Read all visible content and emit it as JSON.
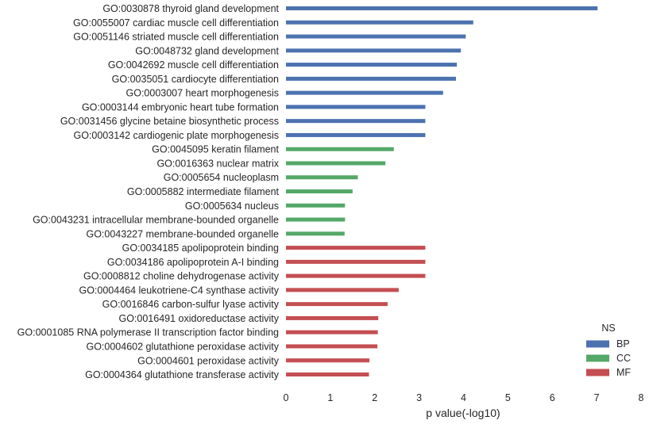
{
  "chart_data": {
    "type": "bar",
    "orientation": "horizontal",
    "xlabel": "p value(-log10)",
    "xlim": [
      0,
      8
    ],
    "xticks": [
      0,
      1,
      2,
      3,
      4,
      5,
      6,
      7,
      8
    ],
    "grid": false,
    "legend": {
      "title": "NS",
      "placement": "bottom-right",
      "entries": [
        {
          "key": "BP",
          "label": "BP",
          "color": "#4c72b0"
        },
        {
          "key": "CC",
          "label": "CC",
          "color": "#55a868"
        },
        {
          "key": "MF",
          "label": "MF",
          "color": "#c44e52"
        }
      ]
    },
    "bars": [
      {
        "label": "GO:0030878 thyroid gland development",
        "value": 7.02,
        "ns": "BP"
      },
      {
        "label": "GO:0055007 cardiac muscle cell differentiation",
        "value": 4.22,
        "ns": "BP"
      },
      {
        "label": "GO:0051146 striated muscle cell differentiation",
        "value": 4.05,
        "ns": "BP"
      },
      {
        "label": "GO:0048732 gland development",
        "value": 3.94,
        "ns": "BP"
      },
      {
        "label": "GO:0042692 muscle cell differentiation",
        "value": 3.85,
        "ns": "BP"
      },
      {
        "label": "GO:0035051 cardiocyte differentiation",
        "value": 3.83,
        "ns": "BP"
      },
      {
        "label": "GO:0003007 heart morphogenesis",
        "value": 3.54,
        "ns": "BP"
      },
      {
        "label": "GO:0003144 embryonic heart tube formation",
        "value": 3.14,
        "ns": "BP"
      },
      {
        "label": "GO:0031456 glycine betaine biosynthetic process",
        "value": 3.14,
        "ns": "BP"
      },
      {
        "label": "GO:0003142 cardiogenic plate morphogenesis",
        "value": 3.14,
        "ns": "BP"
      },
      {
        "label": "GO:0045095 keratin filament",
        "value": 2.43,
        "ns": "CC"
      },
      {
        "label": "GO:0016363 nuclear matrix",
        "value": 2.24,
        "ns": "CC"
      },
      {
        "label": "GO:0005654 nucleoplasm",
        "value": 1.62,
        "ns": "CC"
      },
      {
        "label": "GO:0005882 intermediate filament",
        "value": 1.5,
        "ns": "CC"
      },
      {
        "label": "GO:0005634 nucleus",
        "value": 1.33,
        "ns": "CC"
      },
      {
        "label": "GO:0043231 intracellular membrane-bounded organelle",
        "value": 1.33,
        "ns": "CC"
      },
      {
        "label": "GO:0043227 membrane-bounded organelle",
        "value": 1.32,
        "ns": "CC"
      },
      {
        "label": "GO:0034185 apolipoprotein binding",
        "value": 3.14,
        "ns": "MF"
      },
      {
        "label": "GO:0034186 apolipoprotein A-I binding",
        "value": 3.14,
        "ns": "MF"
      },
      {
        "label": "GO:0008812 choline dehydrogenase activity",
        "value": 3.14,
        "ns": "MF"
      },
      {
        "label": "GO:0004464 leukotriene-C4 synthase activity",
        "value": 2.54,
        "ns": "MF"
      },
      {
        "label": "GO:0016846 carbon-sulfur lyase activity",
        "value": 2.29,
        "ns": "MF"
      },
      {
        "label": "GO:0016491 oxidoreductase activity",
        "value": 2.08,
        "ns": "MF"
      },
      {
        "label": "GO:0001085 RNA polymerase II transcription factor binding",
        "value": 2.07,
        "ns": "MF"
      },
      {
        "label": "GO:0004602 glutathione peroxidase activity",
        "value": 2.06,
        "ns": "MF"
      },
      {
        "label": "GO:0004601 peroxidase activity",
        "value": 1.88,
        "ns": "MF"
      },
      {
        "label": "GO:0004364 glutathione transferase activity",
        "value": 1.87,
        "ns": "MF"
      }
    ]
  }
}
